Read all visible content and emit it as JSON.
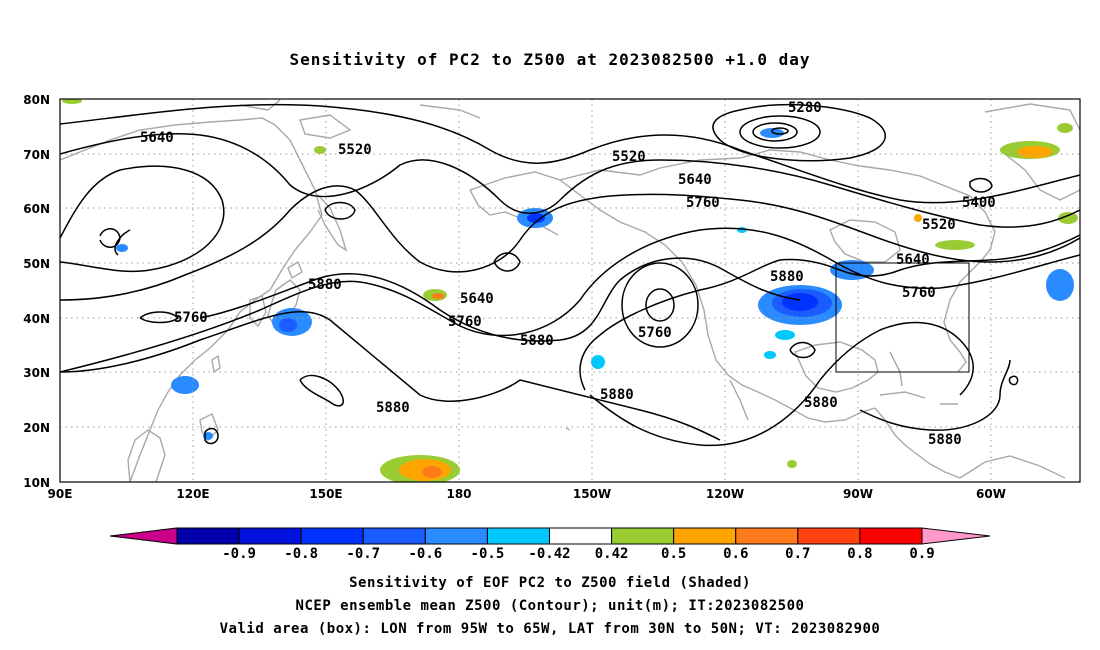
{
  "title": "Sensitivity of PC2 to Z500 at 2023082500 +1.0 day",
  "lat_labels": [
    "80N",
    "70N",
    "60N",
    "50N",
    "40N",
    "30N",
    "20N",
    "10N"
  ],
  "lon_labels": [
    "90E",
    "120E",
    "150E",
    "180",
    "150W",
    "120W",
    "90W",
    "60W"
  ],
  "contour_labels": [
    {
      "text": "5640"
    },
    {
      "text": "5520"
    },
    {
      "text": "5280"
    },
    {
      "text": "5520"
    },
    {
      "text": "5640"
    },
    {
      "text": "5760"
    },
    {
      "text": "5400"
    },
    {
      "text": "5520"
    },
    {
      "text": "5640"
    },
    {
      "text": "5760"
    },
    {
      "text": "5880"
    },
    {
      "text": "5880"
    },
    {
      "text": "5640"
    },
    {
      "text": "5760"
    },
    {
      "text": "5760"
    },
    {
      "text": "5880"
    },
    {
      "text": "5880"
    },
    {
      "text": "5880"
    },
    {
      "text": "5880"
    },
    {
      "text": "5880"
    }
  ],
  "colorbar": {
    "labels": [
      "-0.9",
      "-0.8",
      "-0.7",
      "-0.6",
      "-0.5",
      "-0.42",
      "0.42",
      "0.5",
      "0.6",
      "0.7",
      "0.8",
      "0.9"
    ],
    "colors": [
      "#0000aa",
      "#0011dd",
      "#0033ff",
      "#1a5cff",
      "#2a8aff",
      "#00c8ff",
      "#ffffff",
      "#99cc33",
      "#ffa500",
      "#ff7a1a",
      "#ff4010",
      "#ff0000"
    ],
    "low_end_color": "#cc0088",
    "high_end_color": "#ff99cc"
  },
  "valid_box": {
    "lon_from": "95W",
    "lon_to": "65W",
    "lat_from": "30N",
    "lat_to": "50N"
  },
  "captions": [
    "Sensitivity of EOF PC2 to Z500 field (Shaded)",
    "NCEP ensemble mean Z500 (Contour); unit(m); IT:2023082500",
    "Valid area (box): LON from 95W to 65W, LAT from 30N to 50N; VT: 2023082900"
  ]
}
